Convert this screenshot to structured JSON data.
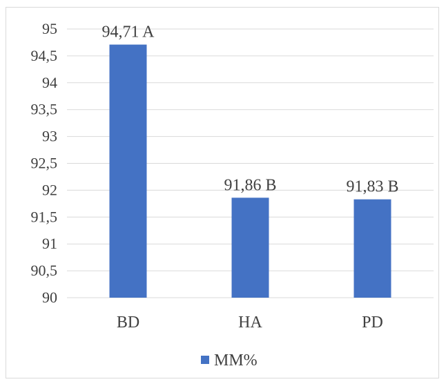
{
  "chart_data": {
    "type": "bar",
    "categories": [
      "BD",
      "HA",
      "PD"
    ],
    "series": [
      {
        "name": "MM%",
        "values": [
          94.71,
          91.86,
          91.83
        ],
        "color": "#4472c4"
      }
    ],
    "data_labels": [
      "94,71 A",
      "91,86 B",
      "91,83 B"
    ],
    "y_ticks": [
      "90",
      "90,5",
      "91",
      "91,5",
      "92",
      "92,5",
      "93",
      "93,5",
      "94",
      "94,5",
      "95"
    ],
    "ylim": [
      90,
      95
    ],
    "grid": true,
    "legend_position": "bottom"
  }
}
